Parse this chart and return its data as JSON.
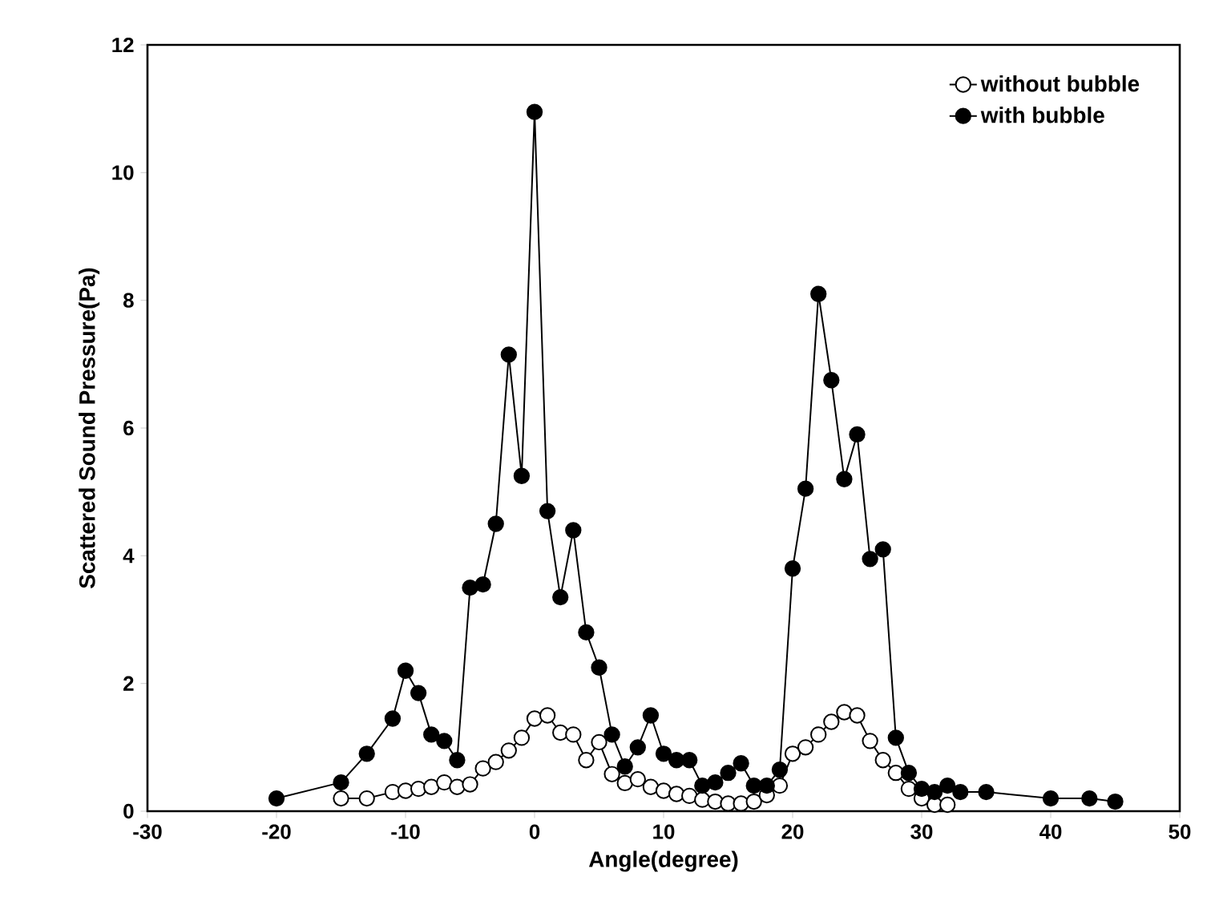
{
  "chart_data": {
    "type": "line",
    "xlabel": "Angle(degree)",
    "ylabel": "Scattered Sound Pressure(Pa)",
    "xlim": [
      -30,
      50
    ],
    "ylim": [
      0,
      12
    ],
    "xticks": [
      -30,
      -20,
      -10,
      0,
      10,
      20,
      30,
      40,
      50
    ],
    "yticks": [
      0,
      2,
      4,
      6,
      8,
      10,
      12
    ],
    "grid": false,
    "legend": "top right",
    "marker": "circle",
    "series": [
      {
        "name": "without bubble",
        "color": "#000000",
        "x": [
          -15,
          -13,
          -11,
          -10,
          -9,
          -8,
          -7,
          -6,
          -5,
          -4,
          -3,
          -2,
          -1,
          0,
          1,
          2,
          3,
          4,
          5,
          6,
          7,
          8,
          9,
          10,
          11,
          12,
          13,
          14,
          15,
          16,
          17,
          18,
          19,
          20,
          21,
          22,
          23,
          24,
          25,
          26,
          27,
          28,
          29,
          30,
          31,
          32
        ],
        "values": [
          0.2,
          0.2,
          0.3,
          0.32,
          0.35,
          0.38,
          0.45,
          0.38,
          0.42,
          0.67,
          0.77,
          0.95,
          1.15,
          1.45,
          1.5,
          1.23,
          1.2,
          0.8,
          1.08,
          0.58,
          0.44,
          0.5,
          0.38,
          0.32,
          0.27,
          0.24,
          0.18,
          0.15,
          0.12,
          0.12,
          0.15,
          0.25,
          0.4,
          0.9,
          1.0,
          1.2,
          1.4,
          1.55,
          1.5,
          1.1,
          0.8,
          0.6,
          0.35,
          0.2,
          0.1,
          0.1
        ]
      },
      {
        "name": "with bubble",
        "color": "#000000",
        "x": [
          -20,
          -15,
          -13,
          -11,
          -10,
          -9,
          -8,
          -7,
          -6,
          -5,
          -4,
          -3,
          -2,
          -1,
          0,
          1,
          2,
          3,
          4,
          5,
          6,
          7,
          8,
          9,
          10,
          11,
          12,
          13,
          14,
          15,
          16,
          17,
          18,
          19,
          20,
          21,
          22,
          23,
          24,
          25,
          26,
          27,
          28,
          29,
          30,
          31,
          32,
          33,
          35,
          40,
          43,
          45
        ],
        "values": [
          0.2,
          0.45,
          0.9,
          1.45,
          2.2,
          1.85,
          1.2,
          1.1,
          0.8,
          3.5,
          3.55,
          4.5,
          7.15,
          5.25,
          10.95,
          4.7,
          3.35,
          4.4,
          2.8,
          2.25,
          1.2,
          0.7,
          1.0,
          1.5,
          0.9,
          0.8,
          0.8,
          0.4,
          0.45,
          0.6,
          0.75,
          0.4,
          0.4,
          0.65,
          3.8,
          5.05,
          8.1,
          6.75,
          5.2,
          5.9,
          3.95,
          4.1,
          1.15,
          0.6,
          0.35,
          0.3,
          0.4,
          0.3,
          0.3,
          0.2,
          0.2,
          0.15
        ]
      }
    ]
  }
}
